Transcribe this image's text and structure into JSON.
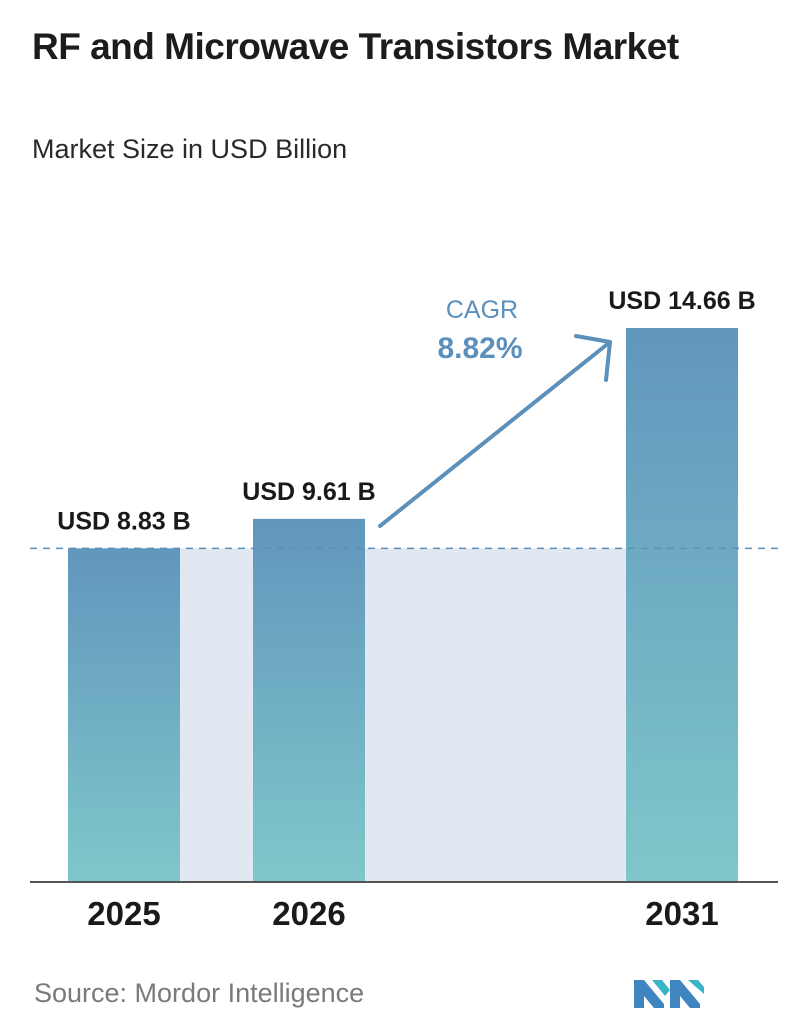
{
  "title": "RF and Microwave Transistors Market",
  "subtitle": "Market Size in USD Billion",
  "source": "Source:  Mordor Intelligence",
  "cagr": {
    "label": "CAGR",
    "value": "8.82%"
  },
  "colors": {
    "bar_top": "#6196bd",
    "bar_bottom": "#7fc7ca",
    "band": "#e1e8f1",
    "arrow": "#5b8fbc",
    "cagr_text": "#5b8fbc",
    "dashed_line": "#5b8fbc",
    "baseline": "#555555"
  },
  "chart_data": {
    "type": "bar",
    "categories": [
      "2025",
      "2026",
      "2031"
    ],
    "values": [
      8.83,
      9.61,
      14.66
    ],
    "value_labels": [
      "USD 8.83 B",
      "USD 9.61 B",
      "USD 14.66 B"
    ],
    "title": "RF and Microwave Transistors Market",
    "subtitle": "Market Size in USD Billion",
    "xlabel": "",
    "ylabel": "",
    "ylim": [
      0,
      14.66
    ],
    "grid": false,
    "reference_line": 8.83
  }
}
